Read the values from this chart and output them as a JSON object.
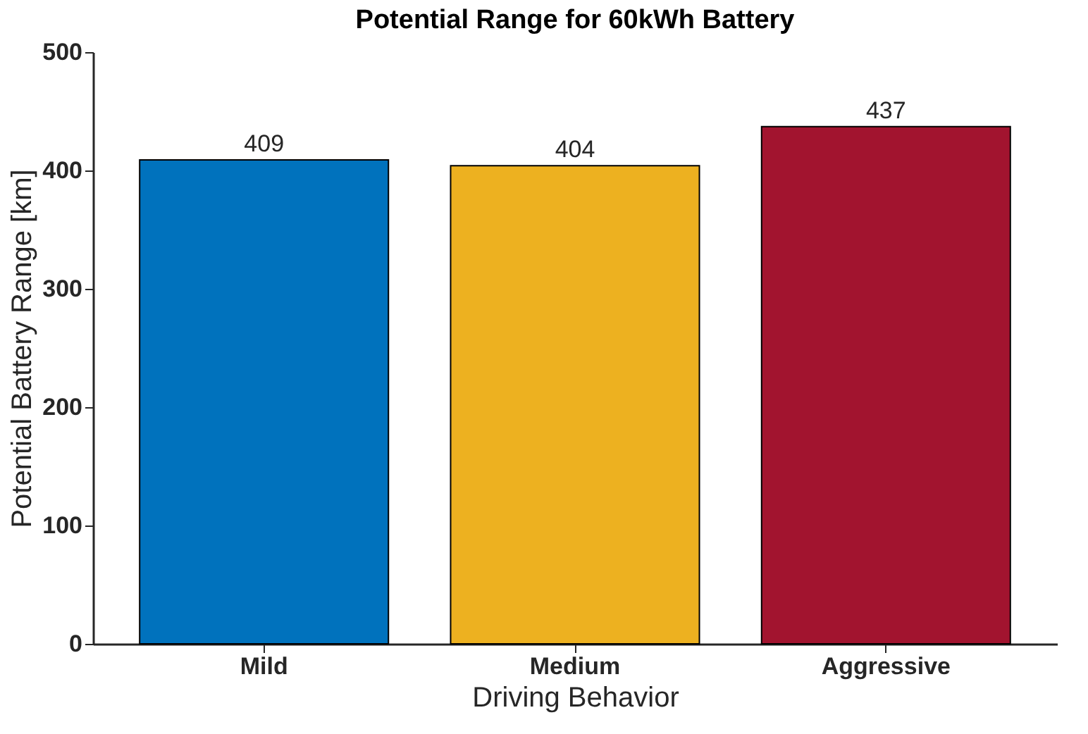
{
  "chart_data": {
    "type": "bar",
    "title": "Potential Range for 60kWh Battery",
    "xlabel": "Driving Behavior",
    "ylabel": "Potential Battery Range [km]",
    "categories": [
      "Mild",
      "Medium",
      "Aggressive"
    ],
    "values": [
      409,
      404,
      437
    ],
    "colors": [
      "#0072bd",
      "#edb120",
      "#a2142f"
    ],
    "ylim": [
      0,
      500
    ],
    "yticks": [
      0,
      100,
      200,
      300,
      400,
      500
    ],
    "data_labels": true,
    "grid": false
  }
}
